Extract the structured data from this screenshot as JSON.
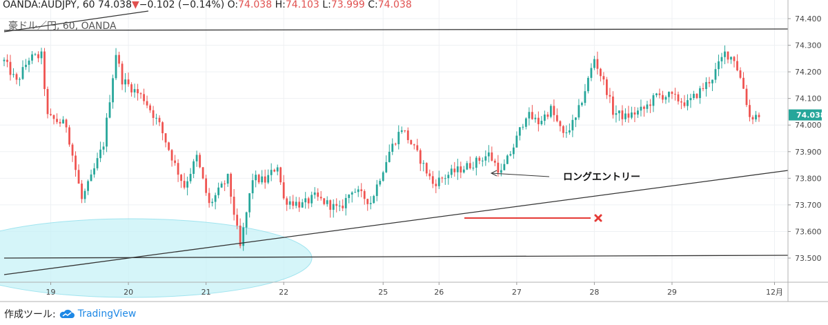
{
  "header": {
    "symbol": "OANDA:AUDJPY, 60",
    "last": "74.038",
    "arrow": "▼",
    "change": "−0.102 (−0.14%)",
    "o_label": "O:",
    "o_val": "74.038",
    "h_label": "H:",
    "h_val": "74.103",
    "l_label": "L:",
    "l_val": "73.999",
    "c_label": "C:",
    "c_val": "74.038",
    "sublabel": "豪ドル／円, 60, OANDA"
  },
  "footer": {
    "made_with": "作成ツール:",
    "brand": "TradingView"
  },
  "colors": {
    "up": "#26a69a",
    "down": "#ef5350",
    "accent": "#26a69a",
    "zone": "#b2ebf2",
    "entry_line": "#e53935"
  },
  "chart_data": {
    "type": "candlestick",
    "ylim": [
      73.42,
      74.45
    ],
    "y_ticks": [
      "74.400",
      "74.300",
      "74.200",
      "74.100",
      "74.000",
      "73.900",
      "73.800",
      "73.700",
      "73.600",
      "73.500"
    ],
    "current_price_label": "74.038",
    "current_price": 74.038,
    "x_ticks": [
      "19",
      "20",
      "21",
      "22",
      "25",
      "26",
      "27",
      "28",
      "29",
      "12月"
    ],
    "x_tick_bars": [
      15,
      40,
      65,
      90,
      122,
      140,
      165,
      190,
      215,
      248
    ],
    "bars": 244,
    "path": [
      [
        0,
        74.24
      ],
      [
        4,
        74.16
      ],
      [
        8,
        74.25
      ],
      [
        12,
        74.26
      ],
      [
        14,
        74.03
      ],
      [
        20,
        74.0
      ],
      [
        25,
        73.72
      ],
      [
        28,
        73.8
      ],
      [
        32,
        73.93
      ],
      [
        36,
        74.27
      ],
      [
        38,
        74.17
      ],
      [
        45,
        74.1
      ],
      [
        50,
        74.0
      ],
      [
        55,
        73.85
      ],
      [
        58,
        73.77
      ],
      [
        62,
        73.88
      ],
      [
        66,
        73.7
      ],
      [
        72,
        73.8
      ],
      [
        76,
        73.54
      ],
      [
        80,
        73.8
      ],
      [
        84,
        73.79
      ],
      [
        88,
        73.85
      ],
      [
        90,
        73.72
      ],
      [
        96,
        73.7
      ],
      [
        100,
        73.73
      ],
      [
        108,
        73.68
      ],
      [
        112,
        73.76
      ],
      [
        118,
        73.71
      ],
      [
        124,
        73.9
      ],
      [
        128,
        73.99
      ],
      [
        134,
        73.87
      ],
      [
        138,
        73.78
      ],
      [
        144,
        73.82
      ],
      [
        150,
        73.85
      ],
      [
        156,
        73.89
      ],
      [
        160,
        73.82
      ],
      [
        164,
        73.92
      ],
      [
        168,
        74.04
      ],
      [
        172,
        74.01
      ],
      [
        176,
        74.06
      ],
      [
        180,
        73.96
      ],
      [
        184,
        74.02
      ],
      [
        188,
        74.17
      ],
      [
        190,
        74.25
      ],
      [
        194,
        74.13
      ],
      [
        196,
        74.05
      ],
      [
        200,
        74.03
      ],
      [
        206,
        74.06
      ],
      [
        210,
        74.11
      ],
      [
        214,
        74.11
      ],
      [
        220,
        74.08
      ],
      [
        225,
        74.14
      ],
      [
        228,
        74.18
      ],
      [
        232,
        74.27
      ],
      [
        235,
        74.25
      ],
      [
        238,
        74.14
      ],
      [
        240,
        74.03
      ],
      [
        244,
        74.04
      ]
    ]
  },
  "annotation": {
    "long_entry": "ロングエントリー"
  }
}
